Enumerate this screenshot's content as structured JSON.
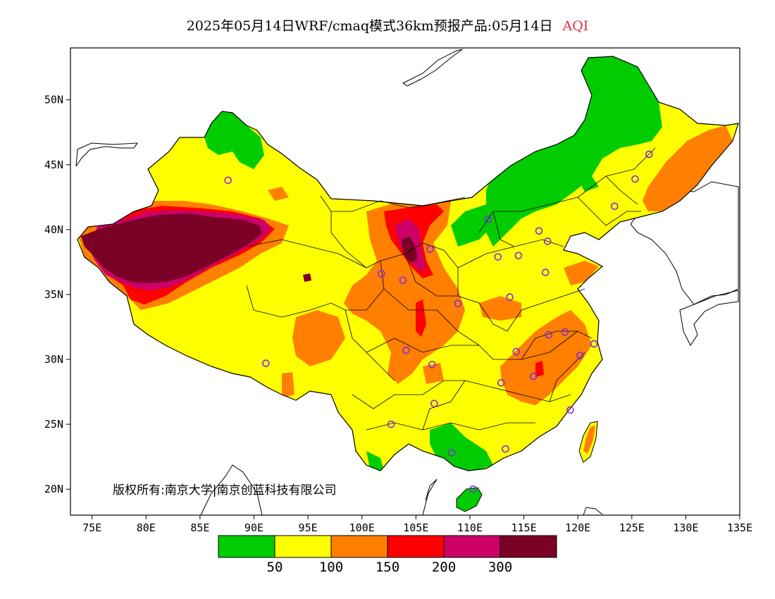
{
  "title": {
    "main": "2025年05月14日WRF/cmaq模式36km预报产品:05月14日",
    "variable": "AQI"
  },
  "copyright": "版权所有:南京大学|南京创蓝科技有限公司",
  "map": {
    "lon_range": [
      73,
      135
    ],
    "lat_range": [
      18,
      54
    ],
    "lat_ticks": [
      {
        "value": 20,
        "label": "20N"
      },
      {
        "value": 25,
        "label": "25N"
      },
      {
        "value": 30,
        "label": "30N"
      },
      {
        "value": 35,
        "label": "35N"
      },
      {
        "value": 40,
        "label": "40N"
      },
      {
        "value": 45,
        "label": "45N"
      },
      {
        "value": 50,
        "label": "50N"
      }
    ],
    "lon_ticks": [
      {
        "value": 75,
        "label": "75E"
      },
      {
        "value": 80,
        "label": "80E"
      },
      {
        "value": 85,
        "label": "85E"
      },
      {
        "value": 90,
        "label": "90E"
      },
      {
        "value": 95,
        "label": "95E"
      },
      {
        "value": 100,
        "label": "100E"
      },
      {
        "value": 105,
        "label": "105E"
      },
      {
        "value": 110,
        "label": "110E"
      },
      {
        "value": 115,
        "label": "115E"
      },
      {
        "value": 120,
        "label": "120E"
      },
      {
        "value": 125,
        "label": "125E"
      },
      {
        "value": 130,
        "label": "130E"
      },
      {
        "value": 135,
        "label": "135E"
      }
    ],
    "colors": {
      "good": "#00cc00",
      "moderate": "#ffff00",
      "usg": "#ff7f00",
      "unhealthy": "#ff0000",
      "very_unhealthy": "#cc0066",
      "hazardous": "#7a0026",
      "station": "#8a2be2"
    },
    "stations": [
      {
        "lon": 87.6,
        "lat": 43.8
      },
      {
        "lon": 91.1,
        "lat": 29.7
      },
      {
        "lon": 101.8,
        "lat": 36.6
      },
      {
        "lon": 103.8,
        "lat": 36.1
      },
      {
        "lon": 106.3,
        "lat": 38.5
      },
      {
        "lon": 108.9,
        "lat": 34.3
      },
      {
        "lon": 104.1,
        "lat": 30.7
      },
      {
        "lon": 106.5,
        "lat": 29.6
      },
      {
        "lon": 106.7,
        "lat": 26.6
      },
      {
        "lon": 102.7,
        "lat": 25.0
      },
      {
        "lon": 108.3,
        "lat": 22.8
      },
      {
        "lon": 110.3,
        "lat": 20.0
      },
      {
        "lon": 113.3,
        "lat": 23.1
      },
      {
        "lon": 112.9,
        "lat": 28.2
      },
      {
        "lon": 114.3,
        "lat": 30.6
      },
      {
        "lon": 115.9,
        "lat": 28.7
      },
      {
        "lon": 117.3,
        "lat": 31.9
      },
      {
        "lon": 118.8,
        "lat": 32.1
      },
      {
        "lon": 120.2,
        "lat": 30.3
      },
      {
        "lon": 121.5,
        "lat": 31.2
      },
      {
        "lon": 119.3,
        "lat": 26.1
      },
      {
        "lon": 113.7,
        "lat": 34.8
      },
      {
        "lon": 117.0,
        "lat": 36.7
      },
      {
        "lon": 114.5,
        "lat": 38.0
      },
      {
        "lon": 112.6,
        "lat": 37.9
      },
      {
        "lon": 111.7,
        "lat": 40.8
      },
      {
        "lon": 116.4,
        "lat": 39.9
      },
      {
        "lon": 117.2,
        "lat": 39.1
      },
      {
        "lon": 123.4,
        "lat": 41.8
      },
      {
        "lon": 125.3,
        "lat": 43.9
      },
      {
        "lon": 126.6,
        "lat": 45.8
      }
    ]
  },
  "legend": {
    "colors": [
      "#00cc00",
      "#ffff00",
      "#ff7f00",
      "#ff0000",
      "#cc0066",
      "#7a0026"
    ],
    "labels": [
      "50",
      "100",
      "150",
      "200",
      "300"
    ]
  }
}
